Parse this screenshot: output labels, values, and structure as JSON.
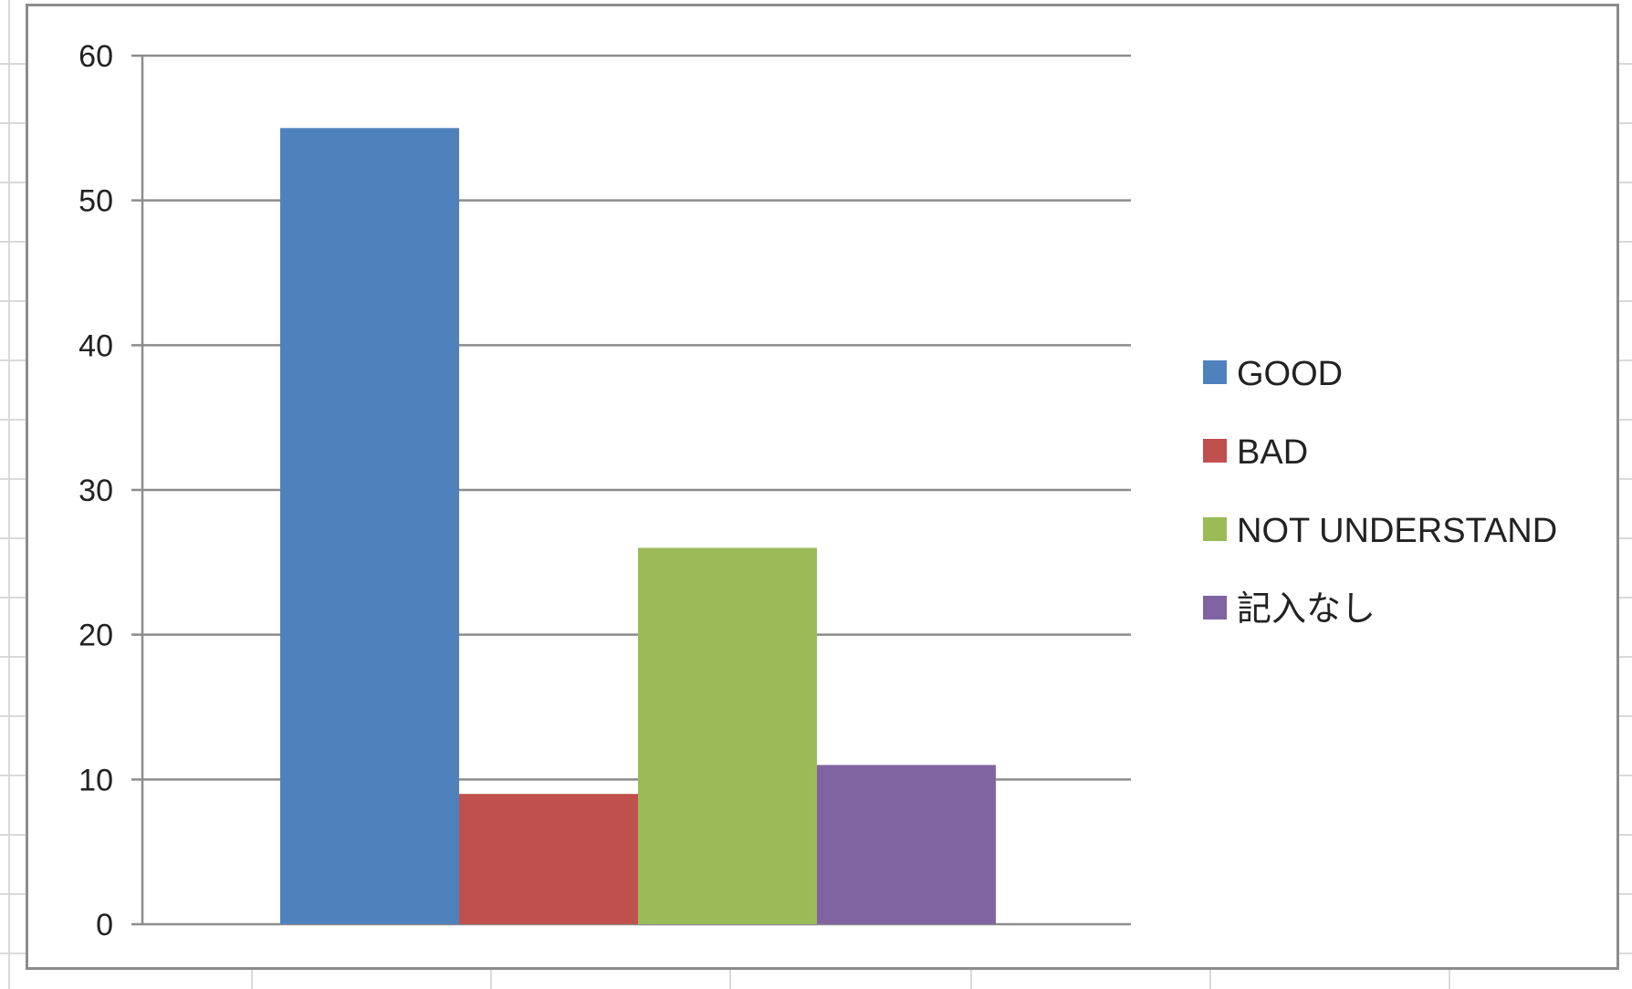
{
  "chart_data": {
    "type": "bar",
    "categories": [
      ""
    ],
    "series": [
      {
        "name": "GOOD",
        "values": [
          55
        ],
        "color": "#4f81bd"
      },
      {
        "name": "BAD",
        "values": [
          9
        ],
        "color": "#c0504d"
      },
      {
        "name": "NOT UNDERSTAND",
        "values": [
          26
        ],
        "color": "#9bbb59"
      },
      {
        "name": "記入なし",
        "values": [
          11
        ],
        "color": "#8064a2"
      }
    ],
    "ylim": [
      0,
      60
    ],
    "yticks": [
      "0",
      "10",
      "20",
      "30",
      "40",
      "50",
      "60"
    ],
    "grid": true,
    "legend": "right",
    "title": "",
    "xlabel": "",
    "ylabel": ""
  },
  "colors": {
    "gridline": "#8c8c8c",
    "axis": "#8c8c8c",
    "frame": "#8c8c8c",
    "sheet_grid": "#d9d9d9"
  }
}
